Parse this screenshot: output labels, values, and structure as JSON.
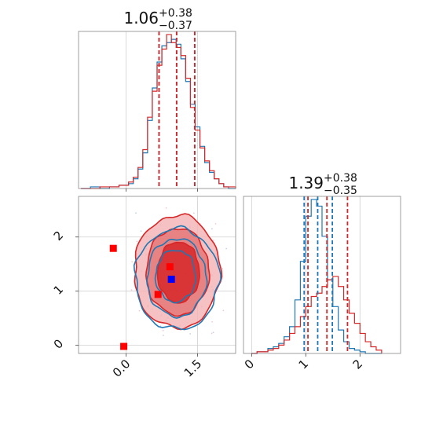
{
  "colors": {
    "red": "#d62728",
    "blue": "#1f77b4",
    "marker_blue": "#0000ff",
    "marker_red": "#ff0000",
    "red_fill_light": "#f2b2b3",
    "red_fill_mid": "#e57374",
    "red_fill_dark": "#d62728"
  },
  "chart_data": {
    "type": "corner",
    "parameters": [
      "p0",
      "p1"
    ],
    "panels": [
      {
        "id": "marginal-p0",
        "type": "histogram",
        "title": {
          "value": "1.06",
          "upper": "+0.38",
          "lower": "−0.37"
        },
        "xlim": [
          -1.0,
          2.3
        ],
        "xticks": [
          0.0,
          1.5
        ],
        "grid": true,
        "quantile_lines": {
          "red": [
            0.69,
            1.06,
            1.44
          ],
          "blue": [
            0.69,
            1.06,
            1.44
          ]
        },
        "series": [
          {
            "name": "",
            "color": "#1f77b4",
            "bins": [
              -0.95,
              -0.75,
              -0.55,
              -0.35,
              -0.15,
              0.05,
              0.15,
              0.25,
              0.35,
              0.45,
              0.55,
              0.65,
              0.75,
              0.85,
              0.95,
              1.05,
              1.15,
              1.25,
              1.35,
              1.45,
              1.55,
              1.65,
              1.75,
              1.85,
              1.95,
              2.05,
              2.15,
              2.3
            ],
            "counts": [
              0,
              1,
              0,
              1,
              2,
              3,
              6,
              12,
              22,
              42,
              62,
              78,
              88,
              90,
              92,
              89,
              80,
              66,
              52,
              38,
              26,
              16,
              10,
              6,
              3,
              1,
              0
            ]
          },
          {
            "name": "",
            "color": "#d62728",
            "bins": [
              -0.95,
              -0.75,
              -0.55,
              -0.35,
              -0.15,
              0.05,
              0.15,
              0.25,
              0.35,
              0.45,
              0.55,
              0.65,
              0.75,
              0.85,
              0.95,
              1.05,
              1.15,
              1.25,
              1.35,
              1.45,
              1.55,
              1.65,
              1.75,
              1.85,
              1.95,
              2.05,
              2.15,
              2.3
            ],
            "counts": [
              0,
              0,
              1,
              1,
              2,
              4,
              7,
              13,
              24,
              44,
              60,
              76,
              86,
              95,
              90,
              87,
              82,
              68,
              50,
              36,
              25,
              17,
              11,
              6,
              3,
              1,
              1
            ]
          }
        ]
      },
      {
        "id": "joint-p0-p1",
        "type": "contour",
        "xlim": [
          -1.0,
          2.3
        ],
        "ylim": [
          -0.15,
          2.75
        ],
        "xticks": [
          0.0,
          1.5
        ],
        "yticks": [
          0,
          1,
          2
        ],
        "grid": true,
        "red_contours": [
          {
            "level": "outer",
            "cx": 1.07,
            "cy": 1.36,
            "rx": 0.9,
            "ry": 1.04
          },
          {
            "level": "mid",
            "cx": 1.08,
            "cy": 1.36,
            "rx": 0.66,
            "ry": 0.8
          },
          {
            "level": "inner",
            "cx": 1.1,
            "cy": 1.35,
            "rx": 0.44,
            "ry": 0.56
          }
        ],
        "blue_contours": [
          {
            "level": "outer",
            "cx": 1.07,
            "cy": 1.22,
            "rx": 0.88,
            "ry": 0.93
          },
          {
            "level": "mid",
            "cx": 1.06,
            "cy": 1.25,
            "rx": 0.62,
            "ry": 0.72
          },
          {
            "level": "inner",
            "cx": 1.04,
            "cy": 1.28,
            "rx": 0.42,
            "ry": 0.48
          }
        ],
        "markers": [
          {
            "x": -0.27,
            "y": 1.79,
            "color": "#ff0000"
          },
          {
            "x": -0.05,
            "y": -0.02,
            "color": "#ff0000"
          },
          {
            "x": 0.67,
            "y": 0.94,
            "color": "#ff0000"
          },
          {
            "x": 0.92,
            "y": 1.45,
            "color": "#ff0000"
          },
          {
            "x": 0.95,
            "y": 1.22,
            "color": "#0000ff"
          }
        ]
      },
      {
        "id": "marginal-p1",
        "type": "histogram",
        "title": {
          "value": "1.39",
          "upper": "+0.38",
          "lower": "−0.35"
        },
        "xlim": [
          -0.15,
          2.75
        ],
        "xticks": [
          0,
          1,
          2
        ],
        "grid": true,
        "quantile_lines": {
          "red": [
            1.04,
            1.39,
            1.77
          ],
          "blue": [
            0.97,
            1.22,
            1.49
          ]
        },
        "series": [
          {
            "name": "",
            "color": "#1f77b4",
            "bins": [
              0.0,
              0.1,
              0.2,
              0.3,
              0.4,
              0.5,
              0.6,
              0.7,
              0.8,
              0.9,
              1.0,
              1.1,
              1.2,
              1.3,
              1.4,
              1.5,
              1.6,
              1.7,
              1.8,
              1.9,
              2.0,
              2.1,
              2.2,
              2.3,
              2.4
            ],
            "counts": [
              0,
              1,
              1,
              3,
              4,
              6,
              10,
              16,
              32,
              55,
              82,
              92,
              88,
              70,
              44,
              28,
              14,
              7,
              3,
              2,
              1,
              0,
              0,
              0
            ]
          },
          {
            "name": "",
            "color": "#d62728",
            "bins": [
              0.0,
              0.1,
              0.2,
              0.3,
              0.4,
              0.5,
              0.6,
              0.7,
              0.8,
              0.9,
              1.0,
              1.1,
              1.2,
              1.3,
              1.4,
              1.5,
              1.6,
              1.7,
              1.8,
              1.9,
              2.0,
              2.1,
              2.2,
              2.3,
              2.4
            ],
            "counts": [
              0,
              1,
              1,
              2,
              3,
              5,
              8,
              12,
              16,
              22,
              28,
              34,
              36,
              40,
              44,
              46,
              40,
              32,
              24,
              18,
              12,
              7,
              4,
              2
            ]
          }
        ]
      }
    ]
  }
}
